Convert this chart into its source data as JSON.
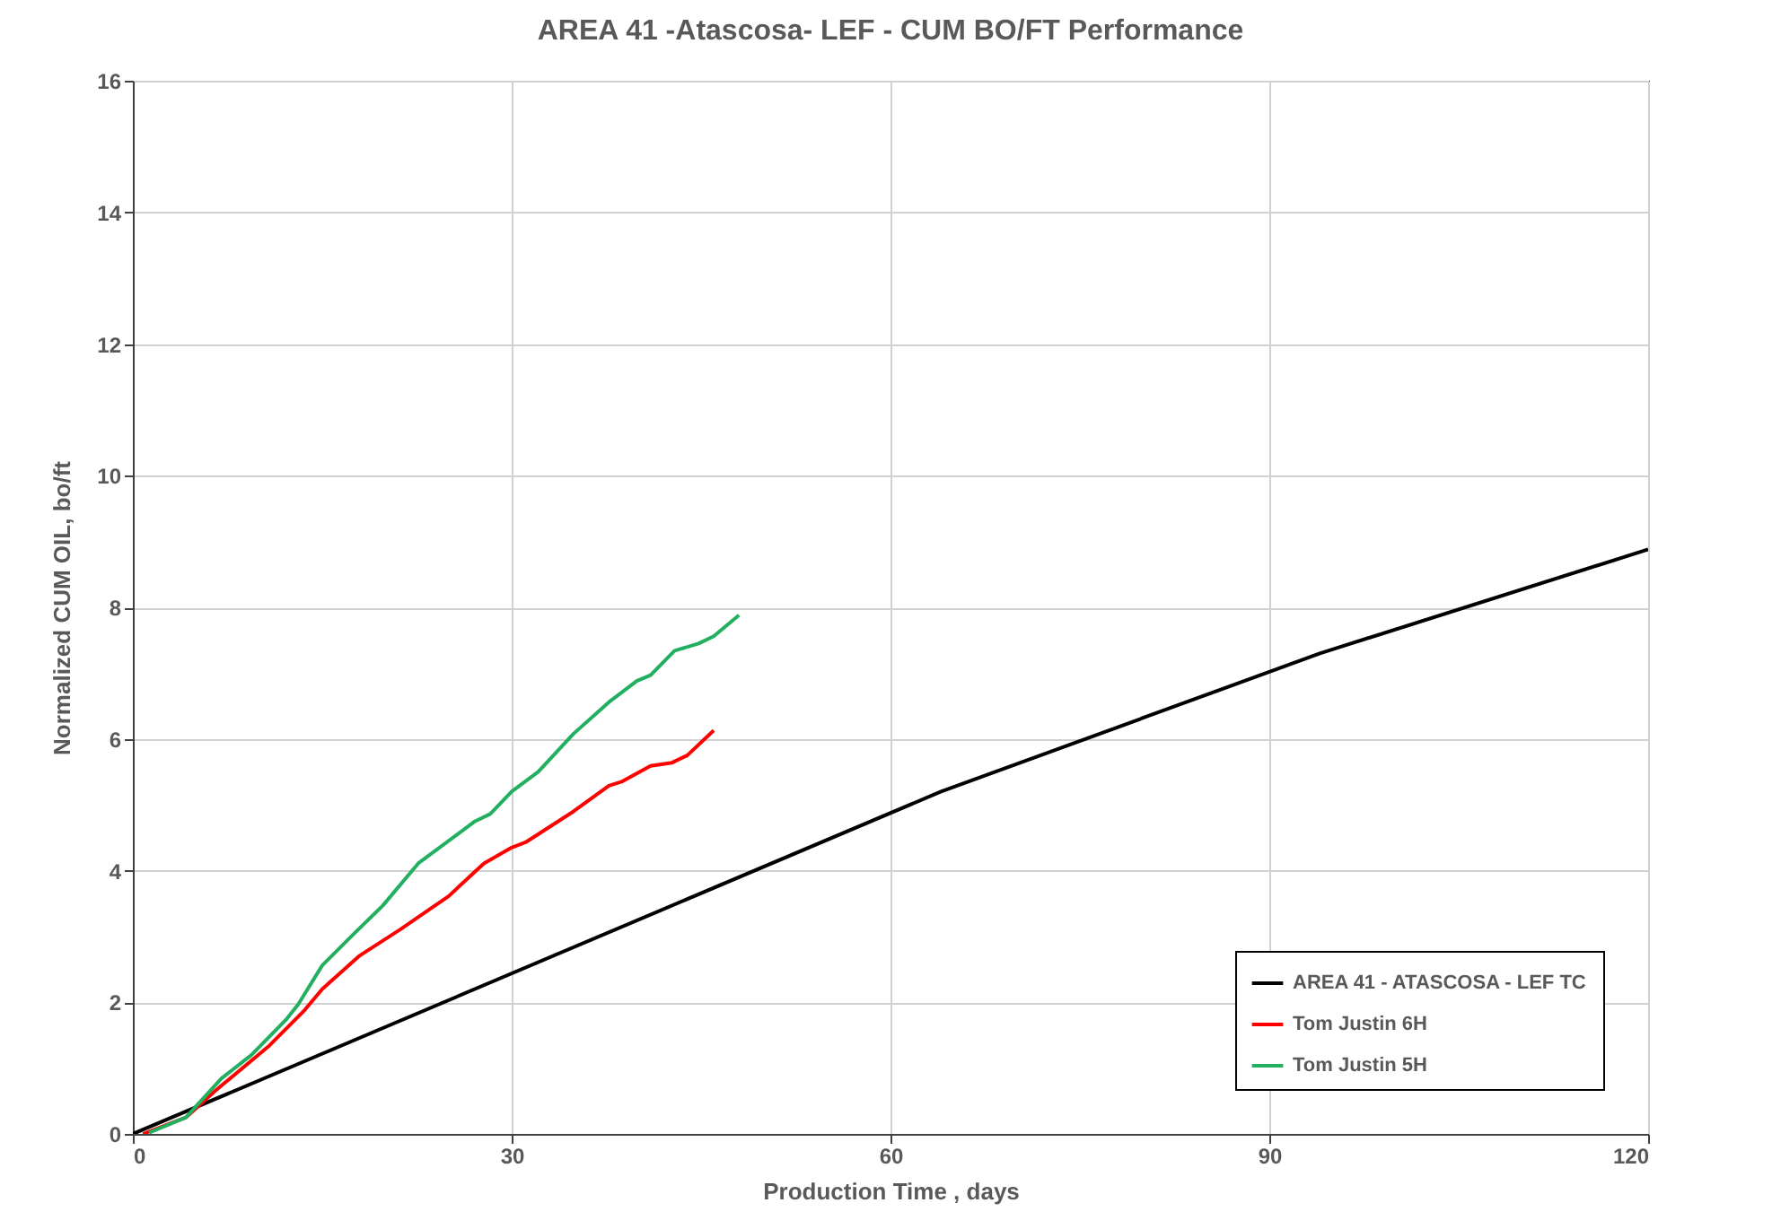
{
  "chart_data": {
    "type": "line",
    "title": "AREA 41 -Atascosa- LEF - CUM BO/FT Performance",
    "xlabel": "Production Time , days",
    "ylabel": "Normalized CUM OIL, bo/ft",
    "xlim": [
      0,
      120
    ],
    "xticks": [
      0,
      30,
      60,
      90,
      120
    ],
    "ylim": [
      0,
      16
    ],
    "yticks": [
      0,
      2,
      4,
      6,
      8,
      10,
      12,
      14,
      16
    ],
    "grid": true,
    "legend": "bottom right",
    "line_style": "solid",
    "series": [
      {
        "name": "AREA 41 - ATASCOSA - LEF TC",
        "color": "#000000",
        "x": [
          0,
          64,
          94,
          120
        ],
        "values": [
          0,
          5.2,
          7.3,
          8.88
        ]
      },
      {
        "name": "Tom Justin 6H",
        "color": "#ff0000",
        "x": [
          0.8,
          4.2,
          6.5,
          10.8,
          13.6,
          15.0,
          17.9,
          21.2,
          25.0,
          27.8,
          30.0,
          31.1,
          34.9,
          37.7,
          38.7,
          41.0,
          42.7,
          43.9,
          46.0
        ],
        "values": [
          0,
          0.25,
          0.65,
          1.34,
          1.88,
          2.2,
          2.7,
          3.11,
          3.61,
          4.11,
          4.35,
          4.43,
          4.9,
          5.29,
          5.35,
          5.59,
          5.64,
          5.75,
          6.13
        ]
      },
      {
        "name": "Tom Justin 5H",
        "color": "#22b060",
        "x": [
          1.3,
          4.2,
          7.0,
          9.4,
          12.2,
          13.1,
          15.0,
          17.4,
          19.8,
          22.6,
          25.0,
          27.1,
          28.3,
          30.0,
          32.1,
          34.9,
          37.7,
          39.9,
          41.0,
          42.9,
          44.8,
          46.0,
          48.0
        ],
        "values": [
          0.02,
          0.25,
          0.84,
          1.2,
          1.75,
          1.97,
          2.56,
          3.02,
          3.47,
          4.11,
          4.45,
          4.75,
          4.86,
          5.2,
          5.5,
          6.08,
          6.56,
          6.88,
          6.97,
          7.34,
          7.45,
          7.56,
          7.88
        ]
      }
    ]
  }
}
